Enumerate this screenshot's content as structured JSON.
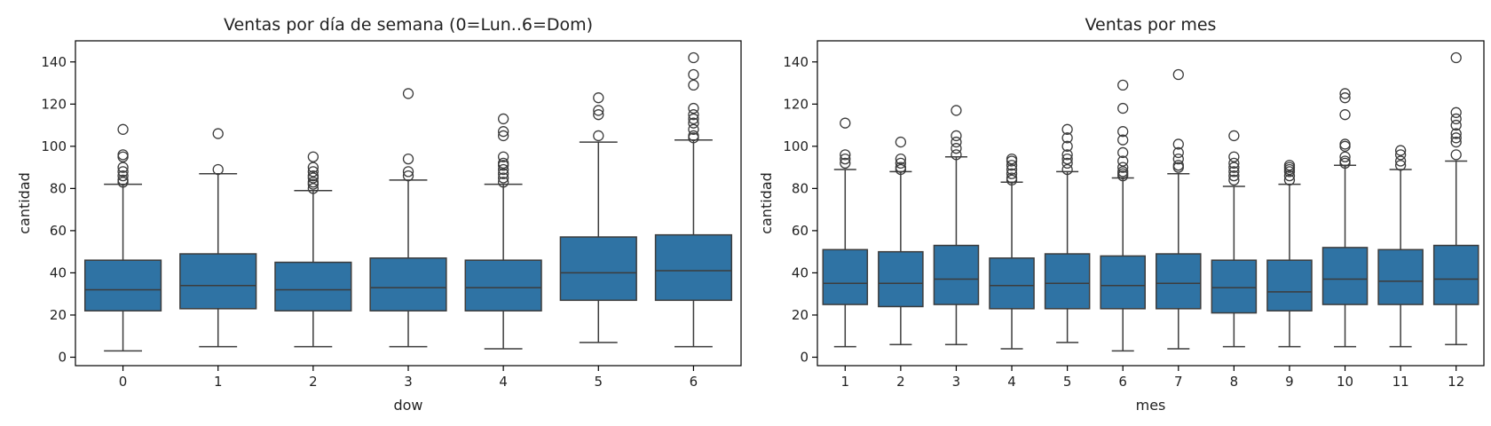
{
  "chart_data": [
    {
      "type": "box",
      "title": "Ventas por día de semana (0=Lun..6=Dom)",
      "xlabel": "dow",
      "ylabel": "cantidad",
      "ylim": [
        -4,
        150
      ],
      "yticks": [
        0,
        20,
        40,
        60,
        80,
        100,
        120,
        140
      ],
      "grid": false,
      "categories": [
        "0",
        "1",
        "2",
        "3",
        "4",
        "5",
        "6"
      ],
      "boxes": [
        {
          "category": "0",
          "whisker_low": 3,
          "q1": 22,
          "median": 32,
          "q3": 46,
          "whisker_high": 82,
          "outliers": [
            83,
            84,
            86,
            88,
            90,
            95,
            96,
            108
          ]
        },
        {
          "category": "1",
          "whisker_low": 5,
          "q1": 23,
          "median": 34,
          "q3": 49,
          "whisker_high": 87,
          "outliers": [
            89,
            106
          ]
        },
        {
          "category": "2",
          "whisker_low": 5,
          "q1": 22,
          "median": 32,
          "q3": 45,
          "whisker_high": 79,
          "outliers": [
            80,
            82,
            83,
            85,
            86,
            88,
            90,
            95
          ]
        },
        {
          "category": "3",
          "whisker_low": 5,
          "q1": 22,
          "median": 33,
          "q3": 47,
          "whisker_high": 84,
          "outliers": [
            86,
            88,
            94,
            125
          ]
        },
        {
          "category": "4",
          "whisker_low": 4,
          "q1": 22,
          "median": 33,
          "q3": 46,
          "whisker_high": 82,
          "outliers": [
            83,
            85,
            87,
            89,
            91,
            92,
            95,
            105,
            107,
            113
          ]
        },
        {
          "category": "5",
          "whisker_low": 7,
          "q1": 27,
          "median": 40,
          "q3": 57,
          "whisker_high": 102,
          "outliers": [
            105,
            115,
            117,
            123
          ]
        },
        {
          "category": "6",
          "whisker_low": 5,
          "q1": 27,
          "median": 41,
          "q3": 58,
          "whisker_high": 103,
          "outliers": [
            104,
            105,
            108,
            111,
            113,
            115,
            118,
            129,
            134,
            142
          ]
        }
      ]
    },
    {
      "type": "box",
      "title": "Ventas por mes",
      "xlabel": "mes",
      "ylabel": "cantidad",
      "ylim": [
        -4,
        150
      ],
      "yticks": [
        0,
        20,
        40,
        60,
        80,
        100,
        120,
        140
      ],
      "grid": false,
      "categories": [
        "1",
        "2",
        "3",
        "4",
        "5",
        "6",
        "7",
        "8",
        "9",
        "10",
        "11",
        "12"
      ],
      "boxes": [
        {
          "category": "1",
          "whisker_low": 5,
          "q1": 25,
          "median": 35,
          "q3": 51,
          "whisker_high": 89,
          "outliers": [
            92,
            94,
            96,
            111
          ]
        },
        {
          "category": "2",
          "whisker_low": 6,
          "q1": 24,
          "median": 35,
          "q3": 50,
          "whisker_high": 88,
          "outliers": [
            89,
            90,
            92,
            94,
            102
          ]
        },
        {
          "category": "3",
          "whisker_low": 6,
          "q1": 25,
          "median": 37,
          "q3": 53,
          "whisker_high": 95,
          "outliers": [
            96,
            99,
            102,
            105,
            117
          ]
        },
        {
          "category": "4",
          "whisker_low": 4,
          "q1": 23,
          "median": 34,
          "q3": 47,
          "whisker_high": 83,
          "outliers": [
            84,
            85,
            87,
            89,
            91,
            93,
            94
          ]
        },
        {
          "category": "5",
          "whisker_low": 7,
          "q1": 23,
          "median": 35,
          "q3": 49,
          "whisker_high": 88,
          "outliers": [
            89,
            92,
            94,
            96,
            100,
            104,
            108
          ]
        },
        {
          "category": "6",
          "whisker_low": 3,
          "q1": 23,
          "median": 34,
          "q3": 48,
          "whisker_high": 85,
          "outliers": [
            86,
            87,
            88,
            90,
            93,
            97,
            103,
            107,
            118,
            129
          ]
        },
        {
          "category": "7",
          "whisker_low": 4,
          "q1": 23,
          "median": 35,
          "q3": 49,
          "whisker_high": 87,
          "outliers": [
            90,
            91,
            94,
            97,
            101,
            134
          ]
        },
        {
          "category": "8",
          "whisker_low": 5,
          "q1": 21,
          "median": 33,
          "q3": 46,
          "whisker_high": 81,
          "outliers": [
            84,
            86,
            88,
            90,
            92,
            95,
            105
          ]
        },
        {
          "category": "9",
          "whisker_low": 5,
          "q1": 22,
          "median": 31,
          "q3": 46,
          "whisker_high": 82,
          "outliers": [
            84,
            86,
            88,
            89,
            90,
            91
          ]
        },
        {
          "category": "10",
          "whisker_low": 5,
          "q1": 25,
          "median": 37,
          "q3": 52,
          "whisker_high": 91,
          "outliers": [
            92,
            93,
            95,
            100,
            101,
            115,
            123,
            125
          ]
        },
        {
          "category": "11",
          "whisker_low": 5,
          "q1": 25,
          "median": 36,
          "q3": 51,
          "whisker_high": 89,
          "outliers": [
            91,
            93,
            96,
            98
          ]
        },
        {
          "category": "12",
          "whisker_low": 6,
          "q1": 25,
          "median": 37,
          "q3": 53,
          "whisker_high": 93,
          "outliers": [
            96,
            102,
            104,
            106,
            110,
            113,
            116,
            142
          ]
        }
      ]
    }
  ],
  "colors": {
    "box_fill": "#2f73a4",
    "line": "#3c3c3c",
    "axis": "#000000",
    "text": "#222222"
  }
}
